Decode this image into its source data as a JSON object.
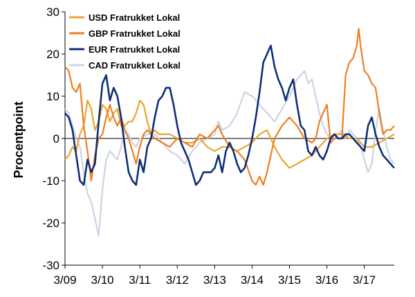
{
  "chart_data": {
    "type": "line",
    "ylabel": "Procentpoint",
    "ylim": [
      -30,
      30
    ],
    "yticks": [
      -30,
      -20,
      -10,
      0,
      10,
      20,
      30
    ],
    "xlim": [
      2009.0,
      2017.8
    ],
    "xticks": [
      {
        "x": 2009.0,
        "label": "3/09"
      },
      {
        "x": 2010.0,
        "label": "3/10"
      },
      {
        "x": 2011.0,
        "label": "3/11"
      },
      {
        "x": 2012.0,
        "label": "3/12"
      },
      {
        "x": 2013.0,
        "label": "3/13"
      },
      {
        "x": 2014.0,
        "label": "3/14"
      },
      {
        "x": 2015.0,
        "label": "3/15"
      },
      {
        "x": 2016.0,
        "label": "3/16"
      },
      {
        "x": 2017.0,
        "label": "3/17"
      }
    ],
    "legend_position": "top-left",
    "series": [
      {
        "name": "USD Fratrukket Lokal",
        "color": "#E8A530",
        "points": [
          [
            2009.0,
            -5
          ],
          [
            2009.1,
            -4
          ],
          [
            2009.2,
            -2
          ],
          [
            2009.3,
            -3
          ],
          [
            2009.4,
            1
          ],
          [
            2009.5,
            3
          ],
          [
            2009.6,
            9
          ],
          [
            2009.7,
            7
          ],
          [
            2009.8,
            2
          ],
          [
            2009.9,
            4
          ],
          [
            2010.0,
            8
          ],
          [
            2010.1,
            7
          ],
          [
            2010.2,
            4
          ],
          [
            2010.3,
            6
          ],
          [
            2010.4,
            7
          ],
          [
            2010.5,
            3
          ],
          [
            2010.6,
            3
          ],
          [
            2010.7,
            4
          ],
          [
            2010.8,
            4
          ],
          [
            2010.9,
            6
          ],
          [
            2011.0,
            9
          ],
          [
            2011.1,
            8
          ],
          [
            2011.2,
            4
          ],
          [
            2011.3,
            1
          ],
          [
            2011.4,
            2
          ],
          [
            2011.5,
            1
          ],
          [
            2011.6,
            1
          ],
          [
            2011.8,
            1
          ],
          [
            2012.0,
            0
          ],
          [
            2012.2,
            -1
          ],
          [
            2012.4,
            -1
          ],
          [
            2012.6,
            0
          ],
          [
            2012.8,
            -2
          ],
          [
            2013.0,
            -3
          ],
          [
            2013.2,
            -2
          ],
          [
            2013.4,
            -2
          ],
          [
            2013.6,
            -3
          ],
          [
            2013.8,
            -2
          ],
          [
            2014.0,
            -1
          ],
          [
            2014.2,
            1
          ],
          [
            2014.4,
            2
          ],
          [
            2014.6,
            -2
          ],
          [
            2014.8,
            -5
          ],
          [
            2015.0,
            -7
          ],
          [
            2015.2,
            -6
          ],
          [
            2015.4,
            -5
          ],
          [
            2015.6,
            -4
          ],
          [
            2015.8,
            -2
          ],
          [
            2016.0,
            0
          ],
          [
            2016.2,
            1
          ],
          [
            2016.4,
            1
          ],
          [
            2016.6,
            0
          ],
          [
            2016.8,
            0
          ],
          [
            2017.0,
            -2
          ],
          [
            2017.2,
            -2
          ],
          [
            2017.4,
            -1
          ],
          [
            2017.6,
            0
          ],
          [
            2017.8,
            1
          ]
        ]
      },
      {
        "name": "GBP Fratrukket Lokal",
        "color": "#F07D1F",
        "points": [
          [
            2009.0,
            17
          ],
          [
            2009.1,
            16
          ],
          [
            2009.2,
            12
          ],
          [
            2009.3,
            11
          ],
          [
            2009.4,
            13
          ],
          [
            2009.5,
            3
          ],
          [
            2009.6,
            -3
          ],
          [
            2009.7,
            -10
          ],
          [
            2009.8,
            -4
          ],
          [
            2009.9,
            0
          ],
          [
            2010.0,
            1
          ],
          [
            2010.1,
            5
          ],
          [
            2010.2,
            8
          ],
          [
            2010.3,
            5
          ],
          [
            2010.4,
            3
          ],
          [
            2010.5,
            5
          ],
          [
            2010.6,
            2
          ],
          [
            2010.7,
            0
          ],
          [
            2010.8,
            -3
          ],
          [
            2010.9,
            -6
          ],
          [
            2011.0,
            -2
          ],
          [
            2011.1,
            1
          ],
          [
            2011.2,
            2
          ],
          [
            2011.4,
            0
          ],
          [
            2011.6,
            -1
          ],
          [
            2011.8,
            -2
          ],
          [
            2012.0,
            0
          ],
          [
            2012.2,
            -1
          ],
          [
            2012.4,
            -2
          ],
          [
            2012.6,
            1
          ],
          [
            2012.8,
            0
          ],
          [
            2013.0,
            2
          ],
          [
            2013.1,
            3
          ],
          [
            2013.2,
            1
          ],
          [
            2013.4,
            -2
          ],
          [
            2013.6,
            -3
          ],
          [
            2013.8,
            -5
          ],
          [
            2014.0,
            -10
          ],
          [
            2014.1,
            -11
          ],
          [
            2014.2,
            -9
          ],
          [
            2014.3,
            -11
          ],
          [
            2014.4,
            -8
          ],
          [
            2014.6,
            0
          ],
          [
            2014.8,
            3
          ],
          [
            2015.0,
            5
          ],
          [
            2015.2,
            3
          ],
          [
            2015.4,
            0
          ],
          [
            2015.6,
            -1
          ],
          [
            2015.7,
            0
          ],
          [
            2015.8,
            4
          ],
          [
            2016.0,
            8
          ],
          [
            2016.1,
            -1
          ],
          [
            2016.2,
            0
          ],
          [
            2016.4,
            0
          ],
          [
            2016.5,
            15
          ],
          [
            2016.6,
            18
          ],
          [
            2016.7,
            19
          ],
          [
            2016.8,
            22
          ],
          [
            2016.85,
            26
          ],
          [
            2016.9,
            22
          ],
          [
            2017.0,
            16
          ],
          [
            2017.1,
            15
          ],
          [
            2017.2,
            13
          ],
          [
            2017.3,
            12
          ],
          [
            2017.4,
            6
          ],
          [
            2017.5,
            1
          ],
          [
            2017.6,
            2
          ],
          [
            2017.7,
            2
          ],
          [
            2017.8,
            3
          ]
        ]
      },
      {
        "name": "EUR Fratrukket Lokal",
        "color": "#0D2E75",
        "points": [
          [
            2009.0,
            6
          ],
          [
            2009.1,
            5
          ],
          [
            2009.2,
            2
          ],
          [
            2009.3,
            -4
          ],
          [
            2009.4,
            -10
          ],
          [
            2009.5,
            -11
          ],
          [
            2009.6,
            -5
          ],
          [
            2009.7,
            -8
          ],
          [
            2009.8,
            -6
          ],
          [
            2009.9,
            4
          ],
          [
            2010.0,
            13
          ],
          [
            2010.1,
            15
          ],
          [
            2010.2,
            9
          ],
          [
            2010.3,
            12
          ],
          [
            2010.4,
            10
          ],
          [
            2010.5,
            5
          ],
          [
            2010.6,
            -2
          ],
          [
            2010.7,
            -8
          ],
          [
            2010.8,
            -10
          ],
          [
            2010.9,
            -11
          ],
          [
            2011.0,
            -5
          ],
          [
            2011.1,
            -8
          ],
          [
            2011.2,
            -2
          ],
          [
            2011.3,
            0
          ],
          [
            2011.4,
            5
          ],
          [
            2011.5,
            9
          ],
          [
            2011.6,
            10
          ],
          [
            2011.7,
            12
          ],
          [
            2011.8,
            12
          ],
          [
            2011.9,
            8
          ],
          [
            2012.0,
            3
          ],
          [
            2012.1,
            -1
          ],
          [
            2012.2,
            -3
          ],
          [
            2012.3,
            -5
          ],
          [
            2012.4,
            -8
          ],
          [
            2012.5,
            -11
          ],
          [
            2012.6,
            -10
          ],
          [
            2012.7,
            -8
          ],
          [
            2012.8,
            -8
          ],
          [
            2012.9,
            -8
          ],
          [
            2013.0,
            -7
          ],
          [
            2013.1,
            -4
          ],
          [
            2013.2,
            -8
          ],
          [
            2013.3,
            -3
          ],
          [
            2013.4,
            -1
          ],
          [
            2013.5,
            -3
          ],
          [
            2013.6,
            -6
          ],
          [
            2013.7,
            -8
          ],
          [
            2013.8,
            -7
          ],
          [
            2013.9,
            -4
          ],
          [
            2014.0,
            0
          ],
          [
            2014.1,
            5
          ],
          [
            2014.2,
            11
          ],
          [
            2014.3,
            18
          ],
          [
            2014.4,
            20
          ],
          [
            2014.5,
            22
          ],
          [
            2014.6,
            17
          ],
          [
            2014.7,
            14
          ],
          [
            2014.8,
            12
          ],
          [
            2014.9,
            9
          ],
          [
            2015.0,
            12
          ],
          [
            2015.1,
            14
          ],
          [
            2015.2,
            8
          ],
          [
            2015.3,
            3
          ],
          [
            2015.4,
            2
          ],
          [
            2015.5,
            -3
          ],
          [
            2015.6,
            -4
          ],
          [
            2015.7,
            -2
          ],
          [
            2015.8,
            -4
          ],
          [
            2015.9,
            -5
          ],
          [
            2016.0,
            -3
          ],
          [
            2016.1,
            0
          ],
          [
            2016.2,
            1
          ],
          [
            2016.3,
            0
          ],
          [
            2016.4,
            0
          ],
          [
            2016.5,
            1
          ],
          [
            2016.6,
            1
          ],
          [
            2016.7,
            0
          ],
          [
            2016.8,
            -1
          ],
          [
            2016.9,
            -2
          ],
          [
            2017.0,
            -3
          ],
          [
            2017.1,
            3
          ],
          [
            2017.2,
            5
          ],
          [
            2017.3,
            1
          ],
          [
            2017.4,
            -2
          ],
          [
            2017.5,
            -4
          ],
          [
            2017.6,
            -5
          ],
          [
            2017.7,
            -6
          ],
          [
            2017.8,
            -7
          ]
        ]
      },
      {
        "name": "CAD Fratrukket Lokal",
        "color": "#CDD3E5",
        "points": [
          [
            2009.0,
            7
          ],
          [
            2009.1,
            6
          ],
          [
            2009.2,
            3
          ],
          [
            2009.3,
            0
          ],
          [
            2009.4,
            -2
          ],
          [
            2009.5,
            -8
          ],
          [
            2009.6,
            -13
          ],
          [
            2009.7,
            -15
          ],
          [
            2009.8,
            -19
          ],
          [
            2009.9,
            -23
          ],
          [
            2010.0,
            -12
          ],
          [
            2010.1,
            -5
          ],
          [
            2010.2,
            -3
          ],
          [
            2010.3,
            -4
          ],
          [
            2010.4,
            -5
          ],
          [
            2010.5,
            -2
          ],
          [
            2010.6,
            2
          ],
          [
            2010.7,
            1
          ],
          [
            2010.8,
            -1
          ],
          [
            2010.9,
            -2
          ],
          [
            2011.0,
            0
          ],
          [
            2011.2,
            1
          ],
          [
            2011.4,
            1
          ],
          [
            2011.6,
            -1
          ],
          [
            2011.8,
            -3
          ],
          [
            2012.0,
            -4
          ],
          [
            2012.2,
            -6
          ],
          [
            2012.4,
            -3
          ],
          [
            2012.6,
            -1
          ],
          [
            2012.8,
            0
          ],
          [
            2013.0,
            1
          ],
          [
            2013.1,
            4
          ],
          [
            2013.2,
            2
          ],
          [
            2013.4,
            3
          ],
          [
            2013.6,
            6
          ],
          [
            2013.8,
            11
          ],
          [
            2014.0,
            10
          ],
          [
            2014.2,
            8
          ],
          [
            2014.4,
            6
          ],
          [
            2014.6,
            4
          ],
          [
            2014.8,
            7
          ],
          [
            2015.0,
            10
          ],
          [
            2015.2,
            14
          ],
          [
            2015.4,
            16
          ],
          [
            2015.5,
            13
          ],
          [
            2015.6,
            14
          ],
          [
            2015.7,
            10
          ],
          [
            2015.8,
            6
          ],
          [
            2015.9,
            3
          ],
          [
            2016.0,
            1
          ],
          [
            2016.2,
            0
          ],
          [
            2016.4,
            2
          ],
          [
            2016.5,
            0
          ],
          [
            2016.6,
            2
          ],
          [
            2016.7,
            1
          ],
          [
            2016.8,
            0
          ],
          [
            2016.9,
            -2
          ],
          [
            2017.0,
            -5
          ],
          [
            2017.1,
            -8
          ],
          [
            2017.2,
            -6
          ],
          [
            2017.3,
            2
          ],
          [
            2017.4,
            7
          ],
          [
            2017.5,
            2
          ],
          [
            2017.6,
            -2
          ],
          [
            2017.7,
            -5
          ],
          [
            2017.8,
            -6
          ]
        ]
      }
    ]
  }
}
